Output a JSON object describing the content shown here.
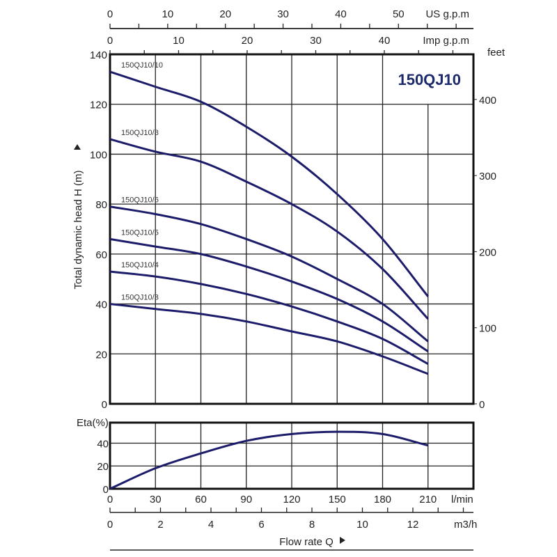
{
  "chart_data": [
    {
      "type": "line",
      "title": "150QJ10",
      "xlabel": "Flow rate Q",
      "x_unit": "l/min",
      "ylabel": "Total dynamic head H (m)",
      "y_right_unit": "feet",
      "xlim": [
        0,
        240
      ],
      "ylim": [
        0,
        140
      ],
      "grid": true,
      "x": [
        0,
        30,
        60,
        90,
        120,
        150,
        180,
        210
      ],
      "x_ticks": [
        0,
        30,
        60,
        90,
        120,
        150,
        180,
        210
      ],
      "y_ticks": [
        0,
        20,
        40,
        60,
        80,
        100,
        120,
        140
      ],
      "y_right_ticks": [
        0,
        100,
        200,
        300,
        400
      ],
      "series": [
        {
          "name": "150QJ10/10",
          "values": [
            133,
            127,
            121,
            111,
            99,
            84,
            66,
            43
          ]
        },
        {
          "name": "150QJ10/8",
          "values": [
            106,
            101,
            97,
            89,
            80,
            69,
            54,
            34
          ]
        },
        {
          "name": "150QJ10/6",
          "values": [
            79,
            76,
            72,
            66,
            59,
            50,
            40,
            25
          ]
        },
        {
          "name": "150QJ10/5",
          "values": [
            66,
            63,
            60,
            55,
            49,
            42,
            33,
            21
          ]
        },
        {
          "name": "150QJ10/4",
          "values": [
            53,
            51,
            48,
            44,
            39,
            33,
            26,
            16
          ]
        },
        {
          "name": "150QJ10/3",
          "values": [
            40,
            38,
            36,
            33,
            29,
            25,
            19,
            12
          ]
        }
      ],
      "secondary_x_axes": [
        {
          "unit": "US g.p.m",
          "ticks": [
            0,
            10,
            20,
            30,
            40,
            50
          ],
          "max": 63
        },
        {
          "unit": "Imp g.p.m",
          "ticks": [
            0,
            10,
            20,
            30,
            40
          ],
          "max": 53
        },
        {
          "unit": "m3/h",
          "ticks": [
            0,
            2,
            4,
            6,
            8,
            10,
            12
          ],
          "max": 14.4
        }
      ]
    },
    {
      "type": "line",
      "title": "",
      "ylabel": "Eta(%)",
      "xlim": [
        0,
        240
      ],
      "ylim": [
        0,
        58
      ],
      "y_ticks": [
        0,
        20,
        40
      ],
      "x": [
        0,
        30,
        60,
        90,
        120,
        150,
        180,
        210
      ],
      "series": [
        {
          "name": "Eta",
          "values": [
            0,
            18,
            31,
            42,
            48,
            50,
            48,
            38
          ]
        }
      ]
    }
  ],
  "colors": {
    "curve": "#1c1c6b",
    "title": "#1c2a6b",
    "grid": "#222222"
  }
}
